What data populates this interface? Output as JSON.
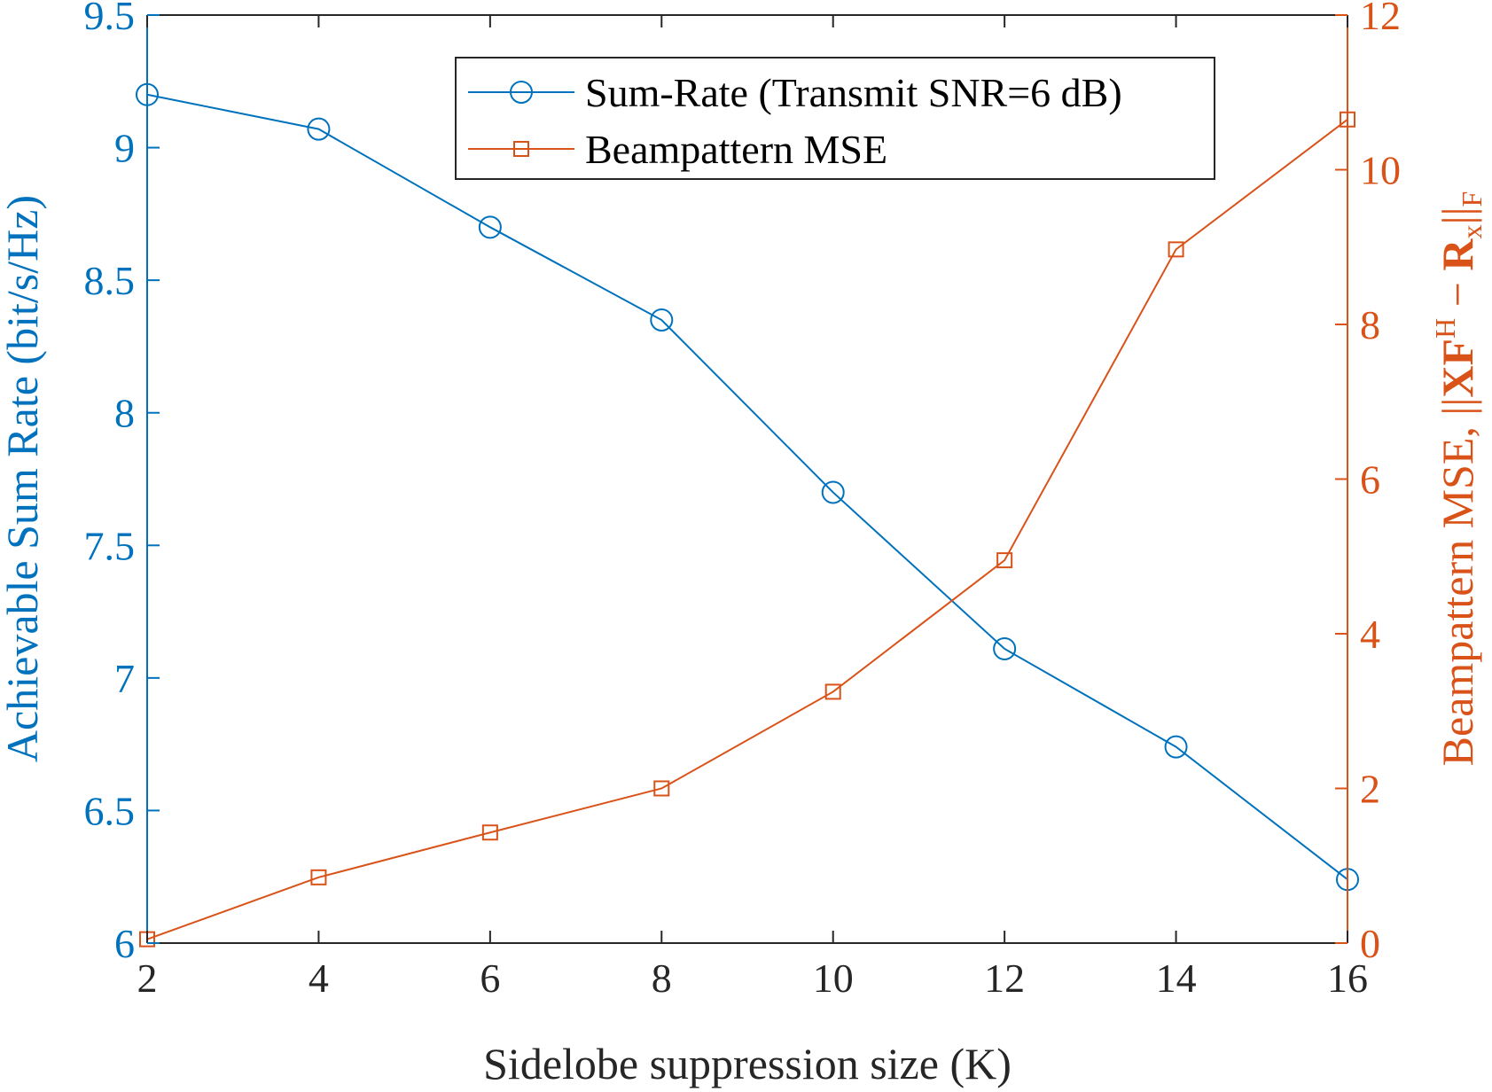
{
  "chart_data": {
    "type": "line",
    "x": [
      2,
      4,
      6,
      8,
      10,
      12,
      14,
      16
    ],
    "xlabel": "Sidelobe suppression size (K)",
    "xlim": [
      2,
      16
    ],
    "xticks": [
      "2",
      "4",
      "6",
      "8",
      "10",
      "12",
      "14",
      "16"
    ],
    "left_axis": {
      "label": "Achievable Sum Rate (bit/s/Hz)",
      "lim": [
        6,
        9.5
      ],
      "ticks": [
        "6",
        "6.5",
        "7",
        "7.5",
        "8",
        "8.5",
        "9",
        "9.5"
      ],
      "color": "#0072BD"
    },
    "right_axis": {
      "label_prefix": "Beampattern MSE, ",
      "label_formula": {
        "norm_open": "||",
        "X": "X",
        "F": "F",
        "sup": "H",
        "minus": " − ",
        "R": "R",
        "sub_x": "x",
        "norm_close": "||",
        "sub_F": "F"
      },
      "lim": [
        0,
        12
      ],
      "ticks": [
        "0",
        "2",
        "4",
        "6",
        "8",
        "10",
        "12"
      ],
      "color": "#D95319"
    },
    "series": [
      {
        "name": "Sum-Rate (Transmit SNR=6 dB)",
        "axis": "left",
        "marker": "circle",
        "color": "#0072BD",
        "values": [
          9.2,
          9.07,
          8.7,
          8.35,
          7.7,
          7.11,
          6.74,
          6.24
        ]
      },
      {
        "name": "Beampattern MSE",
        "axis": "right",
        "marker": "square",
        "color": "#D95319",
        "values": [
          0.05,
          0.85,
          1.43,
          2.0,
          3.25,
          4.95,
          8.97,
          10.65
        ]
      }
    ],
    "legend": {
      "position": "top-right"
    },
    "grid": false
  }
}
